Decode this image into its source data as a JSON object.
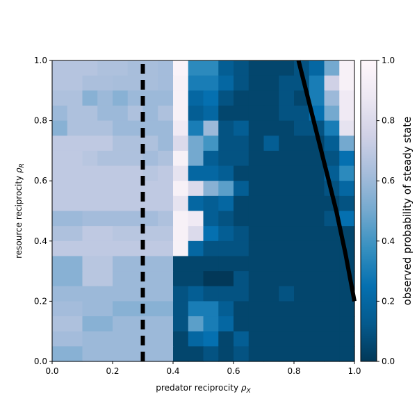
{
  "chart_data": {
    "type": "heatmap",
    "title": "",
    "xlabel": "predator reciprocity",
    "xlabel_symbol": "ρ",
    "xlabel_sub": "X",
    "ylabel": "resource reciprocity",
    "ylabel_symbol": "ρ",
    "ylabel_sub": "R",
    "xlim": [
      0,
      1
    ],
    "ylim": [
      0,
      1
    ],
    "xticks": [
      0.0,
      0.2,
      0.4,
      0.6,
      0.8,
      1.0
    ],
    "xtick_labels": [
      "0.0",
      "0.2",
      "0.4",
      "0.6",
      "0.8",
      "1.0"
    ],
    "yticks": [
      0.0,
      0.2,
      0.4,
      0.6,
      0.8,
      1.0
    ],
    "ytick_labels": [
      "0.0",
      "0.2",
      "0.4",
      "0.6",
      "0.8",
      "1.0"
    ],
    "colorbar": {
      "label": "observed probability of steady state",
      "range": [
        0,
        1
      ],
      "ticks": [
        0.0,
        0.2,
        0.4,
        0.6,
        0.8,
        1.0
      ],
      "tick_labels": [
        "0.0",
        "0.2",
        "0.4",
        "0.6",
        "0.8",
        "1.0"
      ],
      "colormap_stops": [
        {
          "v": 0.0,
          "color": "#023858"
        },
        {
          "v": 0.125,
          "color": "#045a8d"
        },
        {
          "v": 0.25,
          "color": "#0570b0"
        },
        {
          "v": 0.375,
          "color": "#3690c0"
        },
        {
          "v": 0.5,
          "color": "#74a9cf"
        },
        {
          "v": 0.625,
          "color": "#a6bddb"
        },
        {
          "v": 0.75,
          "color": "#d0d1e6"
        },
        {
          "v": 0.875,
          "color": "#ece7f2"
        },
        {
          "v": 1.0,
          "color": "#fff7fb"
        }
      ]
    },
    "grid_shape": [
      20,
      20
    ],
    "cell_values_top_to_bottom": [
      [
        0.67,
        0.67,
        0.67,
        0.65,
        0.65,
        0.63,
        0.63,
        0.62,
        0.97,
        0.35,
        0.35,
        0.15,
        0.1,
        0.05,
        0.05,
        0.05,
        0.1,
        0.2,
        0.5,
        0.95
      ],
      [
        0.67,
        0.67,
        0.64,
        0.64,
        0.63,
        0.63,
        0.63,
        0.62,
        0.95,
        0.3,
        0.3,
        0.2,
        0.1,
        0.05,
        0.05,
        0.1,
        0.1,
        0.3,
        0.75,
        0.95
      ],
      [
        0.65,
        0.65,
        0.55,
        0.6,
        0.55,
        0.6,
        0.6,
        0.6,
        0.95,
        0.2,
        0.25,
        0.1,
        0.05,
        0.05,
        0.05,
        0.1,
        0.05,
        0.3,
        0.6,
        0.9
      ],
      [
        0.6,
        0.65,
        0.65,
        0.6,
        0.6,
        0.65,
        0.6,
        0.65,
        0.95,
        0.15,
        0.2,
        0.05,
        0.05,
        0.05,
        0.05,
        0.1,
        0.1,
        0.25,
        0.5,
        0.9
      ],
      [
        0.55,
        0.65,
        0.65,
        0.65,
        0.6,
        0.6,
        0.6,
        0.6,
        0.9,
        0.3,
        0.6,
        0.1,
        0.15,
        0.05,
        0.05,
        0.05,
        0.1,
        0.1,
        0.3,
        0.85
      ],
      [
        0.7,
        0.7,
        0.7,
        0.7,
        0.65,
        0.65,
        0.65,
        0.6,
        0.8,
        0.5,
        0.4,
        0.1,
        0.1,
        0.05,
        0.15,
        0.05,
        0.05,
        0.05,
        0.15,
        0.5
      ],
      [
        0.7,
        0.7,
        0.68,
        0.65,
        0.65,
        0.65,
        0.62,
        0.65,
        0.95,
        0.5,
        0.15,
        0.1,
        0.1,
        0.05,
        0.05,
        0.05,
        0.05,
        0.05,
        0.1,
        0.25
      ],
      [
        0.7,
        0.7,
        0.7,
        0.7,
        0.7,
        0.7,
        0.68,
        0.7,
        0.85,
        0.2,
        0.2,
        0.15,
        0.05,
        0.05,
        0.05,
        0.05,
        0.05,
        0.05,
        0.15,
        0.35
      ],
      [
        0.7,
        0.7,
        0.7,
        0.7,
        0.7,
        0.7,
        0.7,
        0.7,
        0.95,
        0.8,
        0.55,
        0.45,
        0.15,
        0.05,
        0.05,
        0.05,
        0.05,
        0.05,
        0.1,
        0.2
      ],
      [
        0.7,
        0.7,
        0.7,
        0.7,
        0.7,
        0.7,
        0.7,
        0.7,
        0.85,
        0.2,
        0.15,
        0.2,
        0.05,
        0.05,
        0.05,
        0.05,
        0.05,
        0.05,
        0.05,
        0.1
      ],
      [
        0.6,
        0.6,
        0.62,
        0.62,
        0.62,
        0.62,
        0.62,
        0.65,
        0.95,
        0.9,
        0.15,
        0.1,
        0.05,
        0.05,
        0.05,
        0.05,
        0.05,
        0.05,
        0.1,
        0.25
      ],
      [
        0.65,
        0.65,
        0.7,
        0.7,
        0.68,
        0.68,
        0.68,
        0.68,
        0.95,
        0.8,
        0.25,
        0.15,
        0.1,
        0.05,
        0.05,
        0.05,
        0.05,
        0.05,
        0.05,
        0.05
      ],
      [
        0.7,
        0.7,
        0.7,
        0.7,
        0.7,
        0.7,
        0.7,
        0.7,
        0.95,
        0.2,
        0.1,
        0.1,
        0.1,
        0.05,
        0.05,
        0.05,
        0.05,
        0.05,
        0.05,
        0.05
      ],
      [
        0.55,
        0.55,
        0.68,
        0.68,
        0.6,
        0.6,
        0.6,
        0.6,
        0.05,
        0.05,
        0.05,
        0.05,
        0.05,
        0.05,
        0.05,
        0.05,
        0.05,
        0.05,
        0.05,
        0.05
      ],
      [
        0.55,
        0.55,
        0.68,
        0.68,
        0.6,
        0.6,
        0.6,
        0.6,
        0.05,
        0.05,
        0.0,
        0.0,
        0.1,
        0.05,
        0.05,
        0.05,
        0.05,
        0.05,
        0.05,
        0.05
      ],
      [
        0.6,
        0.6,
        0.6,
        0.6,
        0.6,
        0.6,
        0.6,
        0.6,
        0.1,
        0.15,
        0.1,
        0.1,
        0.1,
        0.05,
        0.05,
        0.1,
        0.05,
        0.05,
        0.05,
        0.05
      ],
      [
        0.62,
        0.62,
        0.6,
        0.6,
        0.55,
        0.55,
        0.55,
        0.55,
        0.1,
        0.3,
        0.3,
        0.15,
        0.05,
        0.05,
        0.05,
        0.05,
        0.05,
        0.05,
        0.05,
        0.05
      ],
      [
        0.65,
        0.65,
        0.55,
        0.55,
        0.6,
        0.6,
        0.6,
        0.6,
        0.1,
        0.45,
        0.3,
        0.2,
        0.05,
        0.05,
        0.05,
        0.05,
        0.05,
        0.05,
        0.05,
        0.05
      ],
      [
        0.62,
        0.62,
        0.6,
        0.6,
        0.6,
        0.6,
        0.6,
        0.6,
        0.05,
        0.2,
        0.25,
        0.05,
        0.15,
        0.05,
        0.05,
        0.05,
        0.05,
        0.05,
        0.05,
        0.05
      ],
      [
        0.55,
        0.55,
        0.6,
        0.6,
        0.6,
        0.6,
        0.6,
        0.6,
        0.05,
        0.05,
        0.1,
        0.05,
        0.1,
        0.05,
        0.05,
        0.05,
        0.05,
        0.05,
        0.05,
        0.05
      ]
    ],
    "dashed_boundary_x": 0.3,
    "solid_boundary_curve": {
      "x": [
        0.815,
        0.85,
        0.88,
        0.91,
        0.94,
        0.97,
        1.0
      ],
      "y": [
        1.0,
        0.86,
        0.74,
        0.62,
        0.5,
        0.36,
        0.2
      ]
    }
  }
}
